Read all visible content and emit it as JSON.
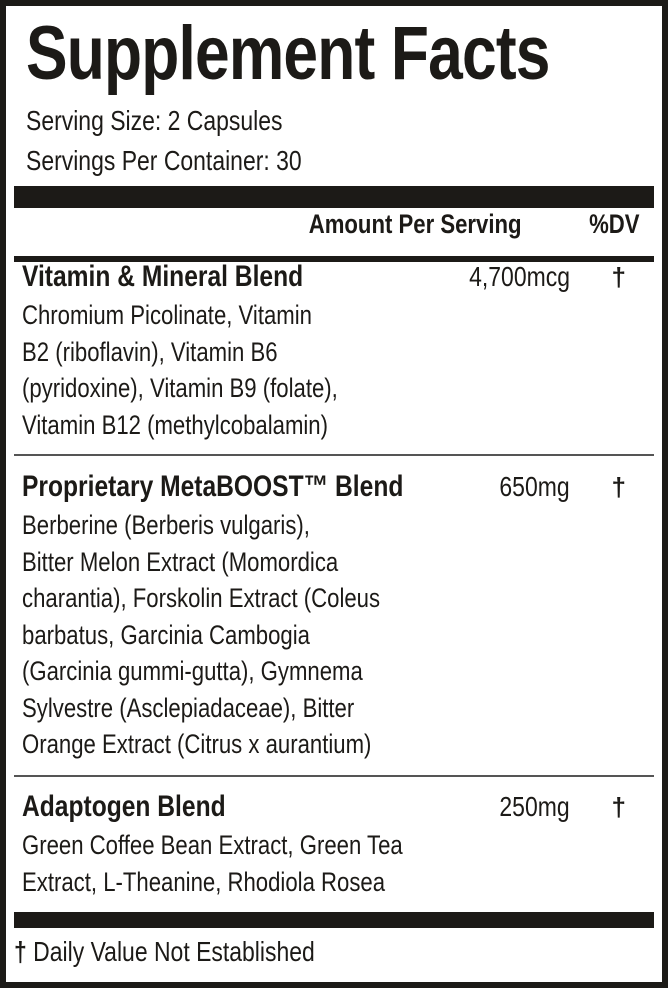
{
  "title": "Supplement Facts",
  "serving_size": "Serving Size: 2 Capsules",
  "servings_per_container": "Servings Per Container: 30",
  "header": {
    "amount": "Amount Per Serving",
    "dv": "%DV"
  },
  "rows": [
    {
      "name": "Vitamin & Mineral Blend",
      "amount": "4,700mcg",
      "dv": "†",
      "lines": [
        "Chromium Picolinate, Vitamin",
        "B2 (riboflavin), Vitamin B6",
        "(pyridoxine), Vitamin B9 (folate),",
        "Vitamin B12 (methylcobalamin)"
      ]
    },
    {
      "name": "Proprietary MetaBOOST™ Blend",
      "amount": "650mg",
      "dv": "†",
      "lines": [
        "Berberine (Berberis vulgaris),",
        "Bitter Melon Extract (Momordica",
        "charantia), Forskolin Extract (Coleus",
        "barbatus, Garcinia Cambogia",
        "(Garcinia gummi-gutta), Gymnema",
        "Sylvestre (Asclepiadaceae), Bitter",
        "Orange Extract (Citrus x aurantium)"
      ]
    },
    {
      "name": "Adaptogen Blend",
      "amount": "250mg",
      "dv": "†",
      "lines": [
        "Green Coffee Bean Extract, Green Tea",
        "Extract, L-Theanine, Rhodiola Rosea"
      ]
    }
  ],
  "footnote": {
    "symbol": "†",
    "text": "Daily Value Not Established"
  }
}
